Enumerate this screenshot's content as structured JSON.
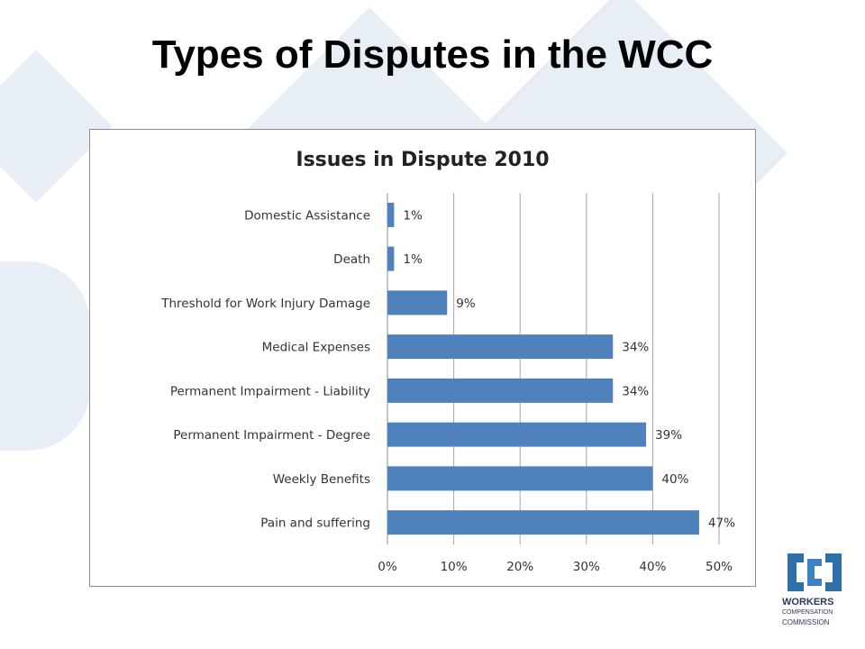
{
  "slide": {
    "title": "Types of Disputes in the WCC"
  },
  "logo": {
    "line1": "WORKERS",
    "line2": "COMPENSATION",
    "line3": "COMMISSION"
  },
  "colors": {
    "bar": "#4f81bd",
    "background_shape": "#e8eef6",
    "logo": "#2f6fa8"
  },
  "chart_data": {
    "type": "bar",
    "orientation": "horizontal",
    "title": "Issues in Dispute 2010",
    "categories": [
      "Domestic Assistance",
      "Death",
      "Threshold for Work Injury Damage",
      "Medical Expenses",
      "Permanent Impairment - Liability",
      "Permanent Impairment - Degree",
      "Weekly Benefits",
      "Pain and suffering"
    ],
    "values": [
      1,
      1,
      9,
      34,
      34,
      39,
      40,
      47
    ],
    "value_labels": [
      "1%",
      "1%",
      "9%",
      "34%",
      "34%",
      "39%",
      "40%",
      "47%"
    ],
    "xlim": [
      0,
      50
    ],
    "xticks": [
      0,
      10,
      20,
      30,
      40,
      50
    ],
    "xtick_labels": [
      "0%",
      "10%",
      "20%",
      "30%",
      "40%",
      "50%"
    ],
    "xlabel": "",
    "ylabel": "",
    "grid": "vertical",
    "legend": "none"
  }
}
